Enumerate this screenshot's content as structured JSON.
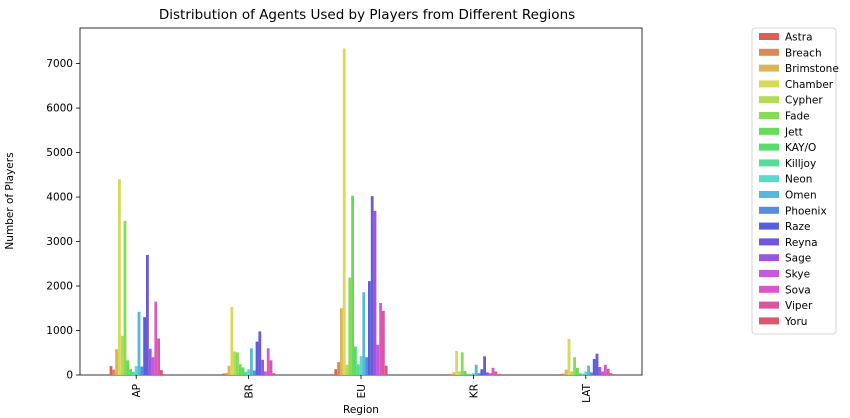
{
  "chart_data": {
    "type": "bar",
    "title": "Distribution of Agents Used by Players from Different Regions",
    "xlabel": "Region",
    "ylabel": "Number of Players",
    "categories": [
      "AP",
      "BR",
      "EU",
      "KR",
      "LAT"
    ],
    "ylim": [
      0,
      7800
    ],
    "yticks": [
      0,
      1000,
      2000,
      3000,
      4000,
      5000,
      6000,
      7000
    ],
    "grid": false,
    "legend_position": "outside-right",
    "series": [
      {
        "name": "Astra",
        "color": "#db5f57",
        "values": [
          200,
          30,
          130,
          20,
          20
        ]
      },
      {
        "name": "Breach",
        "color": "#db8a57",
        "values": [
          120,
          40,
          290,
          20,
          30
        ]
      },
      {
        "name": "Brimstone",
        "color": "#dbb657",
        "values": [
          580,
          210,
          1500,
          60,
          120
        ]
      },
      {
        "name": "Chamber",
        "color": "#d6db57",
        "values": [
          4400,
          1530,
          7340,
          540,
          810
        ]
      },
      {
        "name": "Cypher",
        "color": "#b3db57",
        "values": [
          880,
          530,
          230,
          80,
          80
        ]
      },
      {
        "name": "Fade",
        "color": "#86db57",
        "values": [
          3460,
          510,
          2190,
          510,
          400
        ]
      },
      {
        "name": "Jett",
        "color": "#65db57",
        "values": [
          330,
          240,
          4030,
          90,
          160
        ]
      },
      {
        "name": "KAY/O",
        "color": "#57db6e",
        "values": [
          130,
          170,
          640,
          30,
          40
        ]
      },
      {
        "name": "Killjoy",
        "color": "#57db9a",
        "values": [
          70,
          70,
          240,
          20,
          30
        ]
      },
      {
        "name": "Neon",
        "color": "#57dbc7",
        "values": [
          200,
          130,
          420,
          40,
          80
        ]
      },
      {
        "name": "Omen",
        "color": "#57b8db",
        "values": [
          1420,
          600,
          1860,
          230,
          210
        ]
      },
      {
        "name": "Phoenix",
        "color": "#578bdb",
        "values": [
          190,
          100,
          400,
          40,
          60
        ]
      },
      {
        "name": "Raze",
        "color": "#575fdb",
        "values": [
          1300,
          750,
          2110,
          130,
          360
        ]
      },
      {
        "name": "Reyna",
        "color": "#6e57db",
        "values": [
          2700,
          980,
          4020,
          420,
          480
        ]
      },
      {
        "name": "Sage",
        "color": "#9a57db",
        "values": [
          590,
          340,
          3690,
          60,
          180
        ]
      },
      {
        "name": "Skye",
        "color": "#c757db",
        "values": [
          400,
          80,
          680,
          40,
          80
        ]
      },
      {
        "name": "Sova",
        "color": "#db57c7",
        "values": [
          1650,
          600,
          1620,
          160,
          230
        ]
      },
      {
        "name": "Viper",
        "color": "#db579a",
        "values": [
          820,
          330,
          1440,
          80,
          140
        ]
      },
      {
        "name": "Yoru",
        "color": "#db576e",
        "values": [
          110,
          40,
          210,
          20,
          40
        ]
      }
    ]
  }
}
